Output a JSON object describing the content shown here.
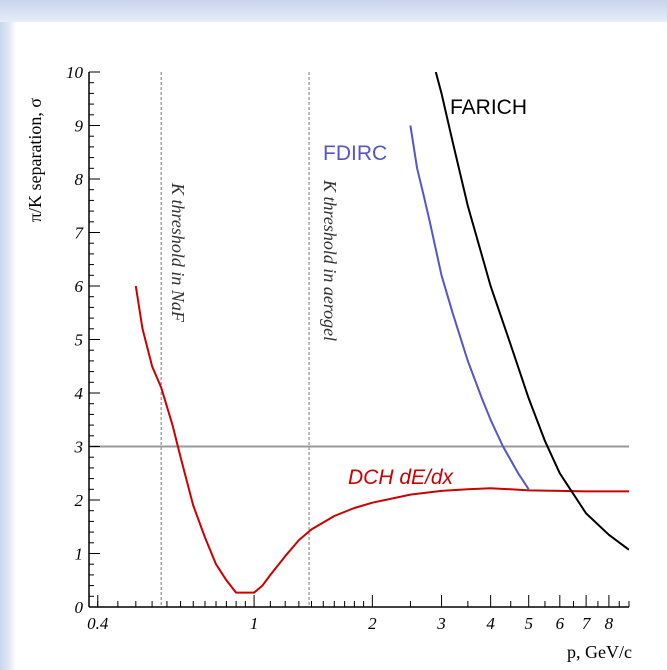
{
  "chart_data": {
    "type": "line",
    "xscale": "log",
    "xlim": [
      0.38,
      9.0
    ],
    "ylim": [
      0,
      10
    ],
    "xlabel": "p, GeV/c",
    "ylabel": "π/K separation, σ",
    "xticks": [
      {
        "value": 0.4,
        "label": "0.4"
      },
      {
        "value": 1,
        "label": "1"
      },
      {
        "value": 2,
        "label": "2"
      },
      {
        "value": 3,
        "label": "3"
      },
      {
        "value": 4,
        "label": "4"
      },
      {
        "value": 5,
        "label": "5"
      },
      {
        "value": 6,
        "label": "6"
      },
      {
        "value": 7,
        "label": "7"
      },
      {
        "value": 8,
        "label": "8"
      }
    ],
    "yticks": [
      {
        "value": 0,
        "label": "0"
      },
      {
        "value": 1,
        "label": "1"
      },
      {
        "value": 2,
        "label": "2"
      },
      {
        "value": 3,
        "label": "3"
      },
      {
        "value": 4,
        "label": "4"
      },
      {
        "value": 5,
        "label": "5"
      },
      {
        "value": 6,
        "label": "6"
      },
      {
        "value": 7,
        "label": "7"
      },
      {
        "value": 8,
        "label": "8"
      },
      {
        "value": 9,
        "label": "9"
      },
      {
        "value": 10,
        "label": "10"
      }
    ],
    "reference_line": {
      "y": 3,
      "color": "#999999"
    },
    "thresholds": [
      {
        "x": 0.58,
        "label": "K threshold in NaF"
      },
      {
        "x": 1.38,
        "label": "K threshold in aerogel"
      }
    ],
    "series": [
      {
        "name": "DCH dE/dx",
        "color": "#cc0000",
        "x": [
          0.5,
          0.52,
          0.55,
          0.58,
          0.62,
          0.65,
          0.7,
          0.75,
          0.8,
          0.85,
          0.9,
          1.0,
          1.05,
          1.1,
          1.2,
          1.3,
          1.4,
          1.6,
          1.8,
          2.0,
          2.5,
          3.0,
          3.5,
          4.0,
          4.5,
          5.0,
          6.0,
          7.0,
          9.0
        ],
        "y": [
          6.0,
          5.2,
          4.5,
          4.1,
          3.4,
          2.8,
          1.9,
          1.3,
          0.8,
          0.5,
          0.27,
          0.27,
          0.4,
          0.6,
          0.95,
          1.25,
          1.45,
          1.7,
          1.85,
          1.95,
          2.1,
          2.17,
          2.2,
          2.22,
          2.2,
          2.18,
          2.17,
          2.16,
          2.16
        ]
      },
      {
        "name": "FDIRC",
        "color": "#5555cc",
        "x": [
          2.5,
          2.6,
          2.7,
          2.8,
          3.0,
          3.2,
          3.5,
          3.8,
          4.0,
          4.3,
          4.7,
          5.0
        ],
        "y": [
          9.0,
          8.2,
          7.7,
          7.2,
          6.2,
          5.5,
          4.6,
          3.9,
          3.5,
          3.0,
          2.5,
          2.2
        ]
      },
      {
        "name": "FARICH",
        "color": "#000000",
        "x": [
          2.9,
          3.0,
          3.2,
          3.5,
          4.0,
          4.5,
          5.0,
          5.5,
          6.0,
          7.0,
          8.0,
          9.0
        ],
        "y": [
          10.0,
          9.6,
          8.7,
          7.5,
          6.0,
          4.9,
          3.9,
          3.1,
          2.5,
          1.75,
          1.35,
          1.07
        ]
      }
    ]
  }
}
